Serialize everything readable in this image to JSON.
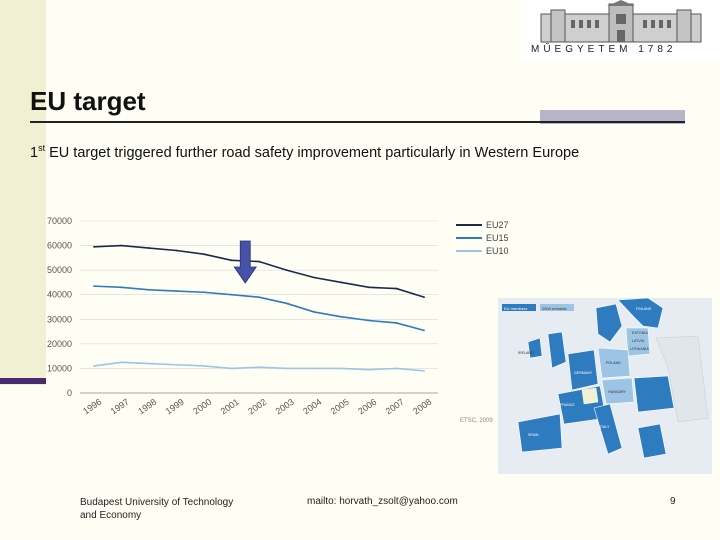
{
  "slide": {
    "title": "EU target",
    "subtitle_prefix": "1",
    "subtitle_sup": "st",
    "subtitle_rest": " EU target triggered further road safety improvement particularly in Western Europe",
    "logo_text": "MŰEGYETEM 1782",
    "source_note": "ETSC, 2009",
    "footer_left": "Budapest University of Technology and Economy",
    "footer_mid": "mailto: horvath_zsolt@yahoo.com",
    "page_number": "9"
  },
  "map": {
    "legend": [
      "EU members",
      "2004 entrants"
    ],
    "labels": [
      "IRELAND",
      "FRANCE",
      "SPAIN",
      "ITALY",
      "POLAND",
      "GERMANY",
      "ESTONIA",
      "LATVIA",
      "LITHUANIA",
      "HUNGARY",
      "FINLAND"
    ]
  },
  "colors": {
    "eu27": "#1a2a4a",
    "eu15": "#2e7bbf",
    "eu10": "#9cc4e4",
    "arrow": "#4652a8",
    "grid": "#d8d8d8"
  },
  "chart_data": {
    "type": "line",
    "x": [
      "1996",
      "1997",
      "1998",
      "1999",
      "2000",
      "2001",
      "2002",
      "2003",
      "2004",
      "2005",
      "2006",
      "2007",
      "2008"
    ],
    "series": [
      {
        "name": "EU27",
        "values": [
          59500,
          60000,
          59000,
          58000,
          56500,
          54000,
          53500,
          50000,
          47000,
          45000,
          43000,
          42500,
          39000
        ]
      },
      {
        "name": "EU15",
        "values": [
          43500,
          43000,
          42000,
          41500,
          41000,
          40000,
          39000,
          36500,
          33000,
          31000,
          29500,
          28500,
          25500
        ]
      },
      {
        "name": "EU10",
        "values": [
          11000,
          12500,
          12000,
          11500,
          11000,
          10000,
          10500,
          10000,
          10000,
          10000,
          9500,
          10000,
          9000
        ]
      }
    ],
    "yticks": [
      "0",
      "10000",
      "20000",
      "30000",
      "40000",
      "50000",
      "60000",
      "70000"
    ],
    "ylim": [
      0,
      70000
    ],
    "legend_position": "top-right",
    "grid": true
  }
}
